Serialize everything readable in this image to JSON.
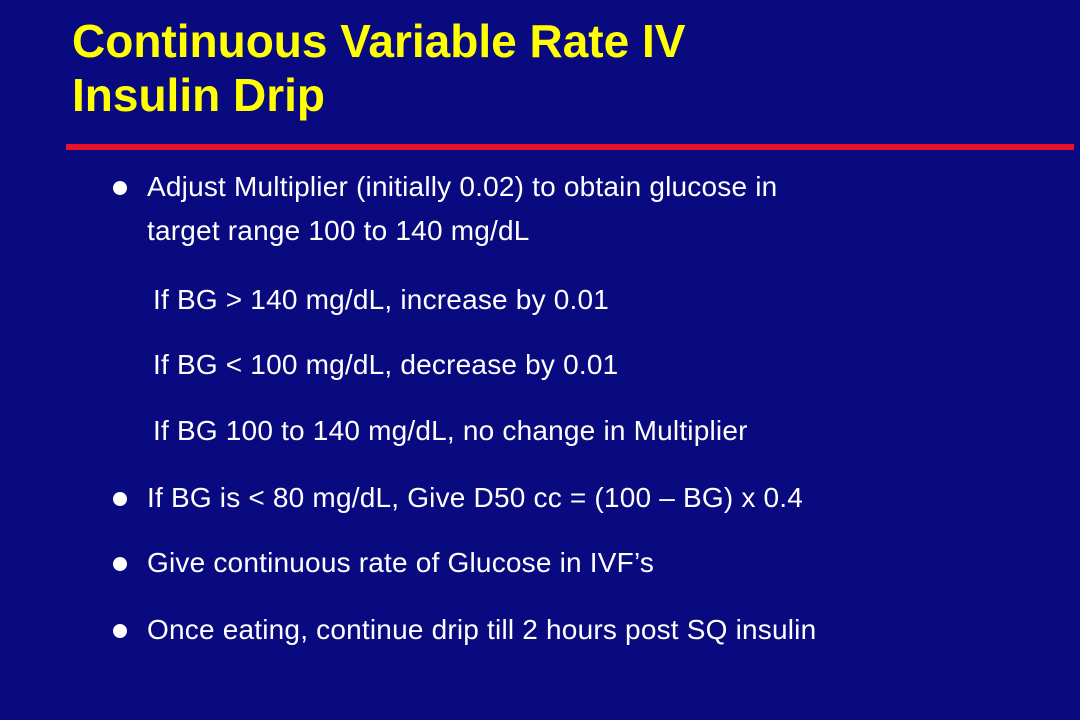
{
  "slide": {
    "title_line1": "Continuous Variable Rate IV",
    "title_line2": "Insulin Drip",
    "bullet1_line1": "Adjust Multiplier (initially 0.02) to obtain glucose in",
    "bullet1_line2": "target range 100 to 140 mg/dL",
    "sub1": "If BG > 140 mg/dL, increase by 0.01",
    "sub2": "If BG < 100 mg/dL, decrease by 0.01",
    "sub3": "If BG 100 to 140 mg/dL, no change in Multiplier",
    "bullet2": "If BG is < 80 mg/dL, Give D50 cc = (100 – BG) x 0.4",
    "bullet3": "Give continuous rate of Glucose in IVF’s",
    "bullet4": "Once eating, continue drip till 2 hours post SQ insulin"
  },
  "colors": {
    "background": "#0a0a80",
    "title": "#ffff00",
    "rule": "#e8102a",
    "text": "#ffffff"
  }
}
